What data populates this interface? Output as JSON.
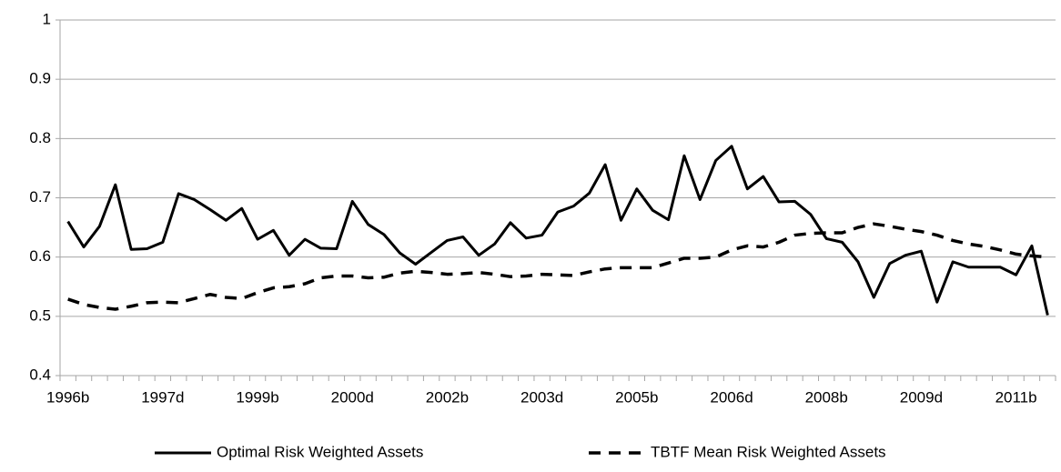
{
  "chart_data": {
    "type": "line",
    "categories": [
      "1996b",
      null,
      null,
      null,
      null,
      null,
      "1997d",
      null,
      null,
      null,
      null,
      null,
      "1999b",
      null,
      null,
      null,
      null,
      null,
      "2000d",
      null,
      null,
      null,
      null,
      null,
      "2002b",
      null,
      null,
      null,
      null,
      null,
      "2003d",
      null,
      null,
      null,
      null,
      null,
      "2005b",
      null,
      null,
      null,
      null,
      null,
      "2006d",
      null,
      null,
      null,
      null,
      null,
      "2008b",
      null,
      null,
      null,
      null,
      null,
      "2009d",
      null,
      null,
      null,
      null,
      null,
      "2011b",
      null,
      null
    ],
    "series": [
      {
        "name": "Optimal Risk Weighted Assets",
        "color": "#000000",
        "style": "solid",
        "values": [
          0.66,
          0.617,
          0.652,
          0.722,
          0.613,
          0.614,
          0.625,
          0.707,
          0.697,
          0.68,
          0.662,
          0.682,
          0.63,
          0.645,
          0.603,
          0.63,
          0.615,
          0.614,
          0.694,
          0.655,
          0.638,
          0.607,
          0.588,
          0.608,
          0.628,
          0.634,
          0.603,
          0.622,
          0.658,
          0.632,
          0.637,
          0.676,
          0.686,
          0.708,
          0.756,
          0.662,
          0.715,
          0.679,
          0.663,
          0.771,
          0.697,
          0.763,
          0.787,
          0.715,
          0.736,
          0.693,
          0.694,
          0.672,
          0.631,
          0.625,
          0.592,
          0.532,
          0.589,
          0.603,
          0.61,
          0.524,
          0.592,
          0.583,
          0.583,
          0.583,
          0.57,
          0.619,
          0.502
        ]
      },
      {
        "name": "TBTF Mean Risk Weighted Assets",
        "color": "#000000",
        "style": "dashed",
        "values": [
          0.529,
          0.52,
          0.515,
          0.512,
          0.517,
          0.523,
          0.524,
          0.523,
          0.53,
          0.537,
          0.532,
          0.53,
          0.54,
          0.548,
          0.55,
          0.555,
          0.565,
          0.568,
          0.568,
          0.565,
          0.566,
          0.573,
          0.576,
          0.574,
          0.571,
          0.572,
          0.574,
          0.571,
          0.567,
          0.568,
          0.571,
          0.57,
          0.569,
          0.575,
          0.58,
          0.582,
          0.582,
          0.582,
          0.59,
          0.598,
          0.598,
          0.6,
          0.612,
          0.619,
          0.617,
          0.625,
          0.637,
          0.64,
          0.641,
          0.641,
          0.65,
          0.656,
          0.652,
          0.647,
          0.643,
          0.637,
          0.628,
          0.622,
          0.618,
          0.612,
          0.605,
          0.602,
          0.6
        ]
      }
    ],
    "ylim": [
      0.4,
      1
    ],
    "yticks": [
      0.4,
      0.5,
      0.6,
      0.7,
      0.8,
      0.9,
      1
    ],
    "grid": true,
    "legend": "bottom"
  }
}
